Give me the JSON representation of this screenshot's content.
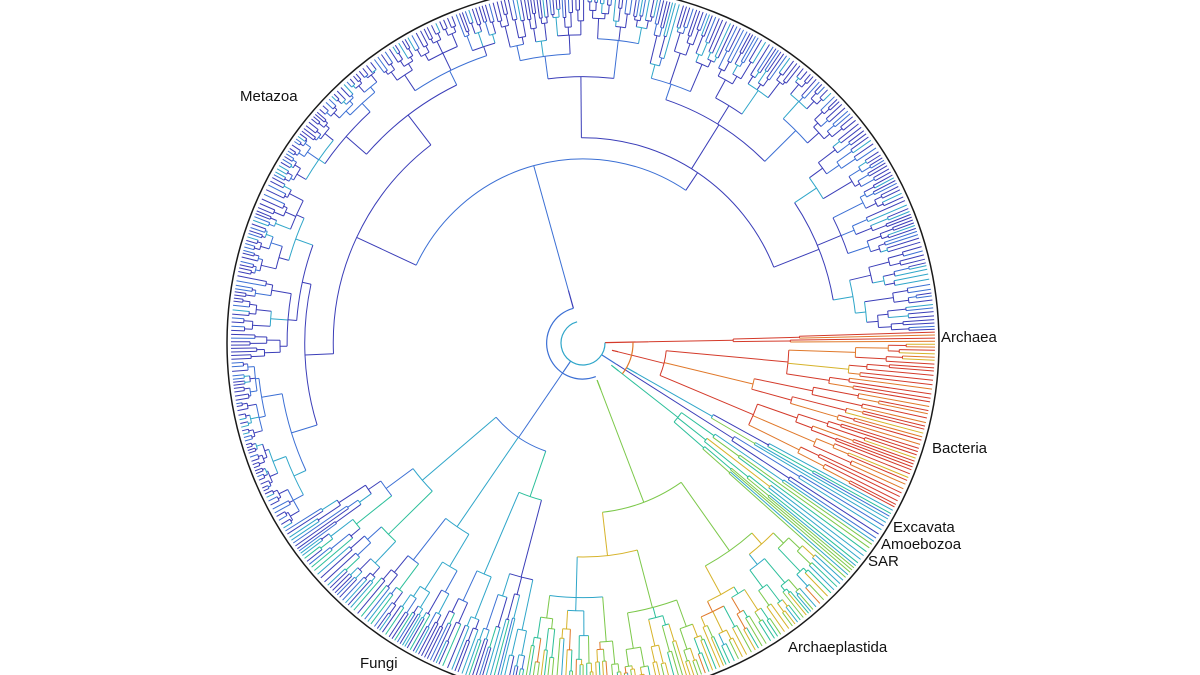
{
  "figure": {
    "clade_labels": {
      "metazoa": "Metazoa",
      "archaea": "Archaea",
      "bacteria": "Bacteria",
      "excavata": "Excavata",
      "amoebozoa": "Amoebozoa",
      "sar": "SAR",
      "archaeplastida": "Archaeplastida",
      "fungi": "Fungi"
    },
    "colors": {
      "ring": "#1a1a1a",
      "palette": [
        "#3a3db8",
        "#3b6fd4",
        "#2fa6c9",
        "#2bbf9a",
        "#7cc84a",
        "#d6b32a",
        "#e0782a",
        "#d43a2a"
      ],
      "label": "#111111"
    },
    "clades": [
      {
        "key": "archaea",
        "start_deg": -2,
        "end_deg": 0,
        "palette_index": 7,
        "leaves": 6
      },
      {
        "key": "bacteria",
        "start_deg": 0,
        "end_deg": 28,
        "palette_index": 7,
        "leaves": 70
      },
      {
        "key": "excavata",
        "start_deg": 28,
        "end_deg": 31,
        "palette_index": 2,
        "leaves": 8
      },
      {
        "key": "amoebozoa",
        "start_deg": 31,
        "end_deg": 34,
        "palette_index": 1,
        "leaves": 8
      },
      {
        "key": "sar",
        "start_deg": 34,
        "end_deg": 42,
        "palette_index": 3,
        "leaves": 18
      },
      {
        "key": "archaeplastida",
        "start_deg": 42,
        "end_deg": 100,
        "palette_index": 4,
        "leaves": 120
      },
      {
        "key": "fungi",
        "start_deg": 100,
        "end_deg": 148,
        "palette_index": 1,
        "leaves": 100
      },
      {
        "key": "metazoa",
        "start_deg": 148,
        "end_deg": 358,
        "palette_index": 0,
        "leaves": 380
      }
    ]
  }
}
